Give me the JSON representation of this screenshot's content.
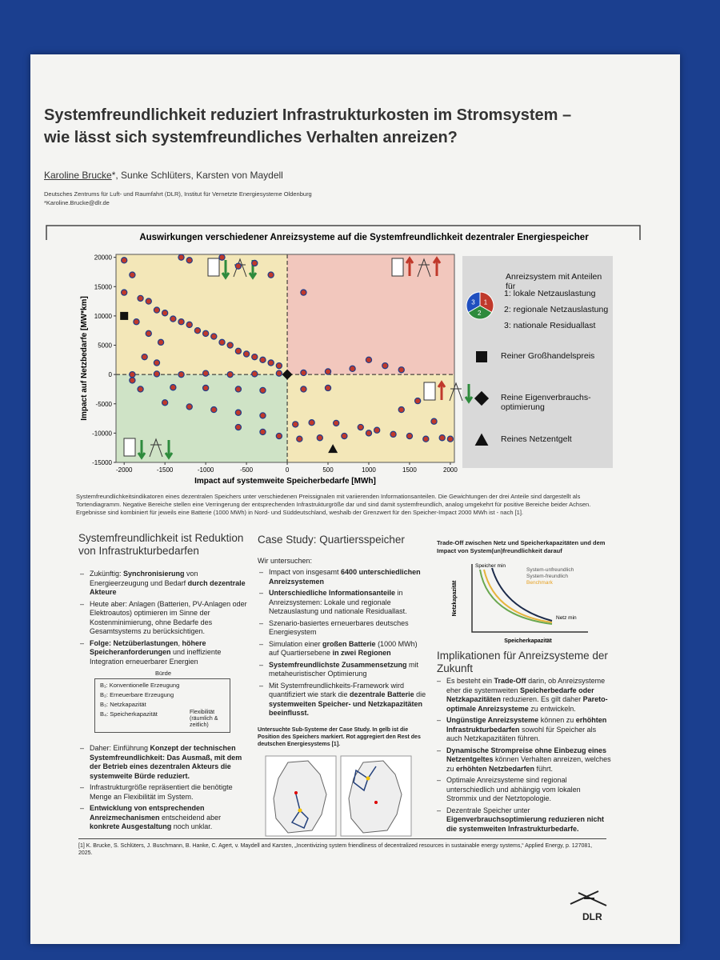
{
  "header": {
    "title_lines": [
      "Systemfreundlichkeit reduziert Infrastrukturkosten im Stromsystem –",
      "wie lässt sich systemfreundliches Verhalten anreizen?"
    ],
    "author_main": "Karoline Brucke",
    "authors_rest": "*, Sunke Schlüters, Karsten von Maydell",
    "affiliation": "Deutsches Zentrums für Luft- und Raumfahrt (DLR), Institut für Vernetzte Energiesysteme Oldenburg",
    "email": "*Karoline.Brucke@dlr.de"
  },
  "chart_data": {
    "type": "scatter",
    "title": "Auswirkungen verschiedener Anreizsysteme auf die Systemfreundlichkeit dezentraler Energiespeicher",
    "xlabel": "Impact auf systemweite Speicherbedarfe [MWh]",
    "ylabel": "Impact auf Netzbedarfe [MW*km]",
    "xlim": [
      -2100,
      2050
    ],
    "ylim": [
      -15000,
      20500
    ],
    "xticks": [
      -2000,
      -1500,
      -1000,
      -500,
      0,
      500,
      1000,
      1500,
      2000
    ],
    "yticks": [
      -15000,
      -10000,
      -5000,
      0,
      5000,
      10000,
      15000,
      20000
    ],
    "color": "#c0392b",
    "x": [
      -2000,
      -1900,
      -1800,
      -1700,
      -1600,
      -1500,
      -1400,
      -1300,
      -1200,
      -1100,
      -1000,
      -900,
      -800,
      -700,
      -600,
      -500,
      -400,
      -300,
      -200,
      -100,
      -1850,
      -1700,
      -1550,
      -1750,
      -1600,
      -1300,
      -1200,
      -800,
      -600,
      -400,
      -200,
      -1900,
      -1600,
      -1300,
      -1000,
      -700,
      -400,
      -100,
      200,
      500,
      800,
      1000,
      1200,
      1400,
      -1800,
      -1400,
      -1000,
      -600,
      -300,
      200,
      500,
      -1500,
      -1200,
      -900,
      -600,
      -300,
      100,
      300,
      600,
      900,
      1100,
      1300,
      1500,
      1700,
      1900,
      -600,
      -300,
      -100,
      150,
      400,
      700,
      1000,
      1400,
      1600,
      1800,
      2000,
      -1900,
      -2000,
      200
    ],
    "values": [
      19500,
      17000,
      13000,
      12500,
      11000,
      10500,
      9500,
      9000,
      8500,
      7500,
      7000,
      6500,
      5500,
      5000,
      4000,
      3500,
      3000,
      2500,
      2000,
      1500,
      9000,
      7000,
      5500,
      3000,
      2000,
      20000,
      19500,
      20000,
      18500,
      19000,
      17000,
      0,
      100,
      0,
      200,
      0,
      100,
      200,
      300,
      500,
      1000,
      2500,
      1500,
      800,
      -2500,
      -2200,
      -2300,
      -2500,
      -2700,
      -2500,
      -2300,
      -4800,
      -5500,
      -6000,
      -6500,
      -7000,
      -8500,
      -8200,
      -8300,
      -9000,
      -9500,
      -10200,
      -10500,
      -11000,
      -10800,
      -9000,
      -9800,
      -10500,
      -11000,
      -10800,
      -10500,
      -10000,
      -6000,
      -4500,
      -8000,
      -11000,
      -1000,
      14000,
      14000
    ],
    "series": [
      {
        "name": "Reiner Großhandelspreis",
        "marker": "square",
        "color": "#111111",
        "x": [
          -2000
        ],
        "values": [
          10000
        ]
      },
      {
        "name": "Reine Eigenverbrauchs-optimierung",
        "marker": "diamond",
        "color": "#111111",
        "x": [
          0
        ],
        "values": [
          0
        ]
      },
      {
        "name": "Reines Netzentgelt",
        "marker": "triangle",
        "color": "#111111",
        "x": [
          560
        ],
        "values": [
          -12700
        ]
      }
    ],
    "legend_title": "Anreizsystem mit Anteilen für",
    "legend_items": [
      "1: lokale  Netzauslastung",
      "2: regionale Netzauslastung",
      "3: nationale  Residuallast"
    ],
    "pie_labels": [
      "1",
      "2",
      "3"
    ]
  },
  "caption": "Systemfreundlichkeitsindikatoren eines dezentralen Speichers unter verschiedenen Preissignalen mit variierenden Informationsanteilen. Die Gewichtungen der drei Anteile sind dargestellt als Tortendiagramm. Negative Bereiche stellen eine Verringerung der entsprechenden Infrastrukturgröße dar und sind damit systemfreundlich, analog umgekehrt für positive Bereiche beider Achsen. Ergebnisse sind kombiniert für jeweils eine Batterie (1000 MWh) in Nord- und Süddeutschland, weshalb der Grenzwert für den Speicher-Impact 2000 MWh ist - nach [1].",
  "left": {
    "heading": "Systemfreundlichkeit ist Reduktion von Infrastrukturbedarfen",
    "bullets": [
      [
        "Zukünftig: ",
        {
          "bold": "Synchronisierung"
        },
        " von Energieerzeugung und Bedarf ",
        {
          "bold": "durch dezentrale Akteure"
        }
      ],
      [
        "Heute  aber: Anlagen (Batterien, PV-Anlagen oder Elektroautos) optimieren im Sinne der Kostenminimierung, ohne Bedarfe des Gesamtsystems zu berücksichtigen."
      ],
      [
        {
          "bold": "Folge: Netzüberlastungen"
        },
        ", ",
        {
          "bold": "höhere Speicheranforderungen"
        },
        " und ineffiziente Integration erneuerbarer Energien"
      ]
    ],
    "burden": {
      "title": "Bürde",
      "items": [
        "B₁: Konventionelle Erzeugung",
        "B₂: Erneuerbare Erzeugung",
        "B₃: Netzkapazität",
        "B₄: Speicherkapazität"
      ],
      "bracket": "Flexibilität (räumlich & zeitlich)"
    },
    "bullets2": [
      [
        "Daher: Einführung ",
        {
          "bold": "Konzept der technischen Systemfreundlichkeit: Das Ausmaß, mit dem der Betrieb eines dezentralen Akteurs die systemweite Bürde reduziert."
        }
      ],
      [
        "Infrastrukturgröße repräsentiert die benötigte Menge an Flexibilität im System."
      ],
      [
        {
          "bold": "Entwicklung von entsprechenden Anreizmechanismen"
        },
        " entscheidend aber ",
        {
          "bold": "konkrete Ausgestaltung"
        },
        "  noch unklar."
      ]
    ]
  },
  "middle": {
    "heading": "Case Study: Quartiersspeicher",
    "intro": "Wir untersuchen:",
    "bullets": [
      [
        "Impact von insgesamt ",
        {
          "bold": "6400 unterschiedlichen Anreizsystemen"
        }
      ],
      [
        {
          "bold": "Unterschiedliche Informationsanteile"
        },
        " in Anreizsystemen: Lokale und regionale Netzauslastung und nationale Residuallast."
      ],
      [
        "Szenario-basiertes erneuerbares deutsches Energiesystem"
      ],
      [
        "Simulation einer ",
        {
          "bold": "großen Batterie"
        },
        " (1000 MWh) auf Quartiersebene ",
        {
          "bold": "in zwei Regionen"
        }
      ],
      [
        {
          "bold": "Systemfreundlichste Zusammensetzung"
        },
        " mit metaheuristischer Optimierung"
      ],
      [
        "Mit Systemfreundlichkeits-Framework wird quantifiziert wie stark die ",
        {
          "bold": "dezentrale Batterie"
        },
        " die ",
        {
          "bold": "systemweiten Speicher- und Netzkapazitäten beeinflusst."
        }
      ]
    ],
    "map_caption": "Untersuchte Sub-Systeme der Case Study. In gelb ist die Position des Speichers markiert. Rot aggregiert den Rest des deutschen Energiesystems [1]."
  },
  "right": {
    "tradeoff": {
      "title": "Trade-Off zwischen Netz und Speicherkapazitäten und dem Impact von System(un)freundlichkeit darauf",
      "y_label": "Netzkapazität",
      "x_label": "Speicherkapazität",
      "storage_min": "Speicher min",
      "grid_min": "Netz min",
      "unfriendly": "System-unfreundlich",
      "friendly": "System-freundlich",
      "benchmark": "Benchmark"
    },
    "heading": "Implikationen für Anreizsysteme der Zukunft",
    "bullets": [
      [
        "Es besteht ein ",
        {
          "bold": "Trade-Off"
        },
        " darin, ob Anreizsysteme eher die systemweiten ",
        {
          "bold": "Speicherbedarfe oder Netzkapazitäten"
        },
        " reduzieren. Es gilt daher ",
        {
          "bold": "Pareto-optimale Anreizsysteme"
        },
        " zu entwickeln."
      ],
      [
        {
          "bold": "Ungünstige Anreizsysteme"
        },
        " können zu ",
        {
          "bold": "erhöhten Infrastrukturbedarfen"
        },
        " sowohl für Speicher als auch Netzkapazitäten führen."
      ],
      [
        {
          "bold": "Dynamische Strompreise ohne Einbezug eines Netzentgeltes"
        },
        " können Verhalten anreizen, welches zu ",
        {
          "bold": "erhöhten Netzbedarfen"
        },
        " führt."
      ],
      [
        "Optimale Anreizsysteme sind regional unterschiedlich und abhängig vom lokalen Strommix und der Netztopologie."
      ],
      [
        "Dezentrale Speicher unter ",
        {
          "bold": "Eigenverbrauchsoptimierung reduzieren nicht die systemweiten Infrastrukturbedarfe."
        }
      ]
    ]
  },
  "reference": "[1] K. Brucke, S. Schlüters, J. Buschmann, B. Hanke, C. Agert, v. Maydell and Karsten, „Incentivizing system friendliness of decentralized resources in sustainable energy systems,“ Applied Energy, p. 127081, 2025.",
  "logo": "DLR"
}
